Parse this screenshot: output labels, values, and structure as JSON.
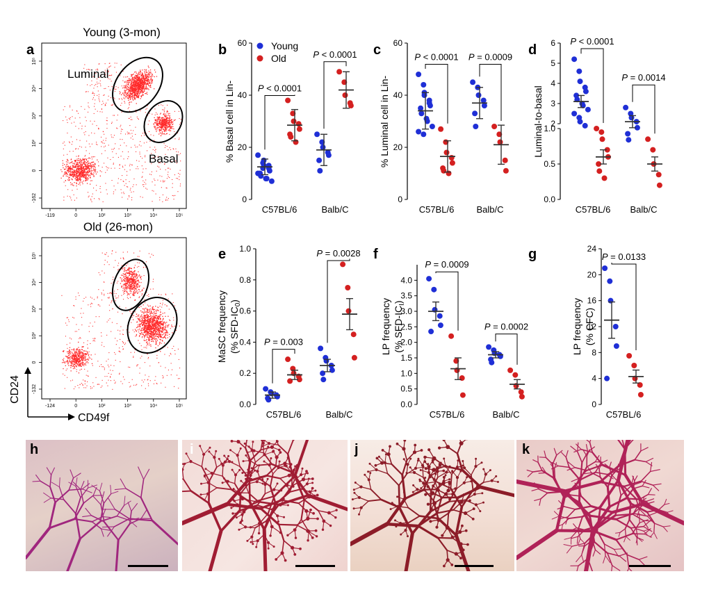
{
  "colors": {
    "young": "#1f2fd6",
    "old": "#d42020",
    "flow_dots": "#ff2a2a",
    "stain_light": "#b0207a",
    "stain_dark": "#8c1c28"
  },
  "panel_letters": {
    "a": "a",
    "b": "b",
    "c": "c",
    "d": "d",
    "e": "e",
    "f": "f",
    "g": "g",
    "h": "h",
    "i": "i",
    "j": "j",
    "k": "k"
  },
  "flow": {
    "young_title": "Young (3-mon)",
    "old_title": "Old (26-mon)",
    "luminal_label": "Luminal",
    "basal_label": "Basal",
    "y_axis_label": "CD24",
    "x_axis_label": "CD49f",
    "top_yticks": [
      "10⁵",
      "10⁴",
      "10³",
      "10²",
      "0",
      "-162"
    ],
    "top_xticks": [
      "-119",
      "0",
      "10²",
      "10³",
      "10⁴",
      "10⁵"
    ],
    "bottom_yticks": [
      "10⁵",
      "10⁴",
      "10³",
      "10²",
      "0",
      "-132"
    ],
    "bottom_xticks": [
      "-124",
      "0",
      "10²",
      "10³",
      "10⁴",
      "10⁵"
    ]
  },
  "chart_data": [
    {
      "panel": "b",
      "type": "scatter",
      "ylabel": "% Basal cell in Lin-",
      "ylim": [
        0,
        60
      ],
      "yticks": [
        0,
        20,
        40,
        60
      ],
      "categories": [
        "C57BL/6",
        "Balb/C"
      ],
      "legend": [
        "Young",
        "Old"
      ],
      "series": [
        {
          "name": "Young",
          "group": "C57BL/6",
          "mean": 12.5,
          "error": 3,
          "values": [
            17,
            14,
            13,
            12,
            11,
            10,
            9,
            8,
            8,
            7,
            10,
            12,
            15,
            13
          ]
        },
        {
          "name": "Old",
          "group": "C57BL/6",
          "mean": 28.5,
          "error": 6,
          "values": [
            38,
            33,
            30,
            29,
            27,
            25,
            24,
            22
          ]
        },
        {
          "name": "Young",
          "group": "Balb/C",
          "mean": 19,
          "error": 6,
          "values": [
            25,
            22,
            20,
            18,
            17,
            15,
            11
          ]
        },
        {
          "name": "Old",
          "group": "Balb/C",
          "mean": 42,
          "error": 7,
          "values": [
            49,
            45,
            40,
            37,
            36
          ]
        }
      ],
      "annotations": [
        {
          "label_italic": "P",
          "label": " < 0.0001",
          "group": "C57BL/6",
          "y": 42
        },
        {
          "label_italic": "P",
          "label": " < 0.0001",
          "group": "Balb/C",
          "y": 55
        }
      ]
    },
    {
      "panel": "c",
      "type": "scatter",
      "ylabel": "% Luminal cell in Lin-",
      "ylim": [
        0,
        60
      ],
      "yticks": [
        0,
        20,
        40,
        60
      ],
      "categories": [
        "C57BL/6",
        "Balb/C"
      ],
      "series": [
        {
          "name": "Young",
          "group": "C57BL/6",
          "mean": 34,
          "error": 7,
          "values": [
            48,
            44,
            40,
            38,
            36,
            35,
            33,
            31,
            30,
            28,
            26,
            25,
            41,
            37
          ]
        },
        {
          "name": "Old",
          "group": "C57BL/6",
          "mean": 16.5,
          "error": 6,
          "values": [
            27,
            22,
            18,
            16,
            14,
            12,
            11,
            10
          ]
        },
        {
          "name": "Young",
          "group": "Balb/C",
          "mean": 37,
          "error": 6,
          "values": [
            45,
            43,
            40,
            38,
            36,
            33,
            28
          ]
        },
        {
          "name": "Old",
          "group": "Balb/C",
          "mean": 21,
          "error": 7.5,
          "values": [
            28,
            25,
            22,
            15,
            11
          ]
        }
      ],
      "annotations": [
        {
          "label_italic": "P",
          "label": " < 0.0001",
          "group": "C57BL/6",
          "y": 54
        },
        {
          "label_italic": "P",
          "label": " = 0.0009",
          "group": "Balb/C",
          "y": 54
        }
      ]
    },
    {
      "panel": "d",
      "type": "scatter",
      "ylabel": "Luminal-to-basal",
      "broken_axis": true,
      "yticks_upper": [
        2,
        3,
        4,
        5,
        6
      ],
      "yticks_lower": [
        0.0,
        0.5,
        1.0
      ],
      "categories": [
        "C57BL/6",
        "Balb/C"
      ],
      "series": [
        {
          "name": "Young",
          "group": "C57BL/6",
          "mean": 3.1,
          "error": 0.3,
          "values": [
            5.2,
            4.6,
            4.1,
            3.8,
            3.6,
            3.4,
            3.2,
            3.0,
            2.9,
            2.7,
            2.5,
            2.3,
            2.1,
            1.9
          ]
        },
        {
          "name": "Old",
          "group": "C57BL/6",
          "mean": 0.6,
          "error": 0.1,
          "values": [
            1.0,
            0.95,
            0.85,
            0.7,
            0.6,
            0.5,
            0.4,
            0.3
          ]
        },
        {
          "name": "Young",
          "group": "Balb/C",
          "mean": 2.1,
          "error": 0.3,
          "values": [
            2.8,
            2.5,
            2.3,
            2.1,
            1.8,
            1.5,
            1.2
          ]
        },
        {
          "name": "Old",
          "group": "Balb/C",
          "mean": 0.5,
          "error": 0.1,
          "values": [
            0.85,
            0.7,
            0.5,
            0.35,
            0.2
          ]
        }
      ],
      "annotations": [
        {
          "label_italic": "P",
          "label": " < 0.0001",
          "group": "C57BL/6",
          "y": 6.0
        },
        {
          "label_italic": "P",
          "label": " = 0.0014",
          "group": "Balb/C",
          "y": 4.2
        }
      ]
    },
    {
      "panel": "e",
      "type": "scatter",
      "ylabel_line1": "MaSC frequency",
      "ylabel_line2": "(% SFD-IC",
      "ylabel_sub": "0",
      "ylabel_end": ")",
      "ylim": [
        0,
        1.0
      ],
      "yticks": [
        0.0,
        0.2,
        0.4,
        0.6,
        0.8,
        1.0
      ],
      "categories": [
        "C57BL/6",
        "Balb/C"
      ],
      "series": [
        {
          "name": "Young",
          "group": "C57BL/6",
          "mean": 0.06,
          "error": 0.02,
          "values": [
            0.1,
            0.08,
            0.07,
            0.06,
            0.05,
            0.04,
            0.03
          ]
        },
        {
          "name": "Old",
          "group": "C57BL/6",
          "mean": 0.19,
          "error": 0.03,
          "values": [
            0.29,
            0.23,
            0.2,
            0.18,
            0.16,
            0.15
          ]
        },
        {
          "name": "Young",
          "group": "Balb/C",
          "mean": 0.25,
          "error": 0.04,
          "values": [
            0.36,
            0.3,
            0.28,
            0.25,
            0.22,
            0.2,
            0.16
          ]
        },
        {
          "name": "Old",
          "group": "Balb/C",
          "mean": 0.58,
          "error": 0.1,
          "values": [
            0.9,
            0.75,
            0.6,
            0.45,
            0.3
          ]
        }
      ],
      "annotations": [
        {
          "label_italic": "P",
          "label": " = 0.003",
          "group": "C57BL/6",
          "y": 0.39
        },
        {
          "label_italic": "P",
          "label": " = 0.0028",
          "group": "Balb/C",
          "y": 0.96
        }
      ]
    },
    {
      "panel": "f",
      "type": "scatter",
      "ylabel_line1": "LP frequency",
      "ylabel_line2": "(% SFD-IC",
      "ylabel_sub": "I",
      "ylabel_end": ")",
      "ylim": [
        0,
        4.5
      ],
      "yticks": [
        0.0,
        0.5,
        1.0,
        1.5,
        2.0,
        2.5,
        3.0,
        3.5,
        4.0
      ],
      "categories": [
        "C57BL/6",
        "Balb/C"
      ],
      "series": [
        {
          "name": "Young",
          "group": "C57BL/6",
          "mean": 3.0,
          "error": 0.3,
          "values": [
            4.05,
            3.7,
            3.05,
            2.85,
            2.55,
            2.35
          ]
        },
        {
          "name": "Old",
          "group": "C57BL/6",
          "mean": 1.15,
          "error": 0.35,
          "values": [
            2.2,
            1.4,
            1.1,
            0.85,
            0.3
          ]
        },
        {
          "name": "Young",
          "group": "Balb/C",
          "mean": 1.6,
          "error": 0.1,
          "values": [
            1.85,
            1.75,
            1.65,
            1.6,
            1.55,
            1.45,
            1.35
          ]
        },
        {
          "name": "Old",
          "group": "Balb/C",
          "mean": 0.65,
          "error": 0.15,
          "values": [
            1.1,
            0.95,
            0.6,
            0.4,
            0.25
          ]
        }
      ],
      "annotations": [
        {
          "label_italic": "P",
          "label": " = 0.0009",
          "group": "C57BL/6",
          "y": 4.45
        },
        {
          "label_italic": "P",
          "label": " = 0.0002",
          "group": "Balb/C",
          "y": 2.45
        }
      ]
    },
    {
      "panel": "g",
      "type": "scatter",
      "ylabel_line1": "LP frequency",
      "ylabel_line2": "(% CFC)",
      "ylim": [
        0,
        24
      ],
      "yticks": [
        0,
        4,
        8,
        12,
        16,
        20,
        24
      ],
      "categories": [
        "C57BL/6"
      ],
      "series": [
        {
          "name": "Young",
          "group": "C57BL/6",
          "mean": 13,
          "error": 2.8,
          "values": [
            21,
            19,
            16,
            12,
            9,
            4
          ]
        },
        {
          "name": "Old",
          "group": "C57BL/6",
          "mean": 4.3,
          "error": 1.0,
          "values": [
            7.5,
            6,
            4,
            3,
            1.5
          ]
        }
      ],
      "annotations": [
        {
          "label_italic": "P",
          "label": " = 0.0133",
          "group": "C57BL/6",
          "y": 22.5
        }
      ]
    }
  ]
}
